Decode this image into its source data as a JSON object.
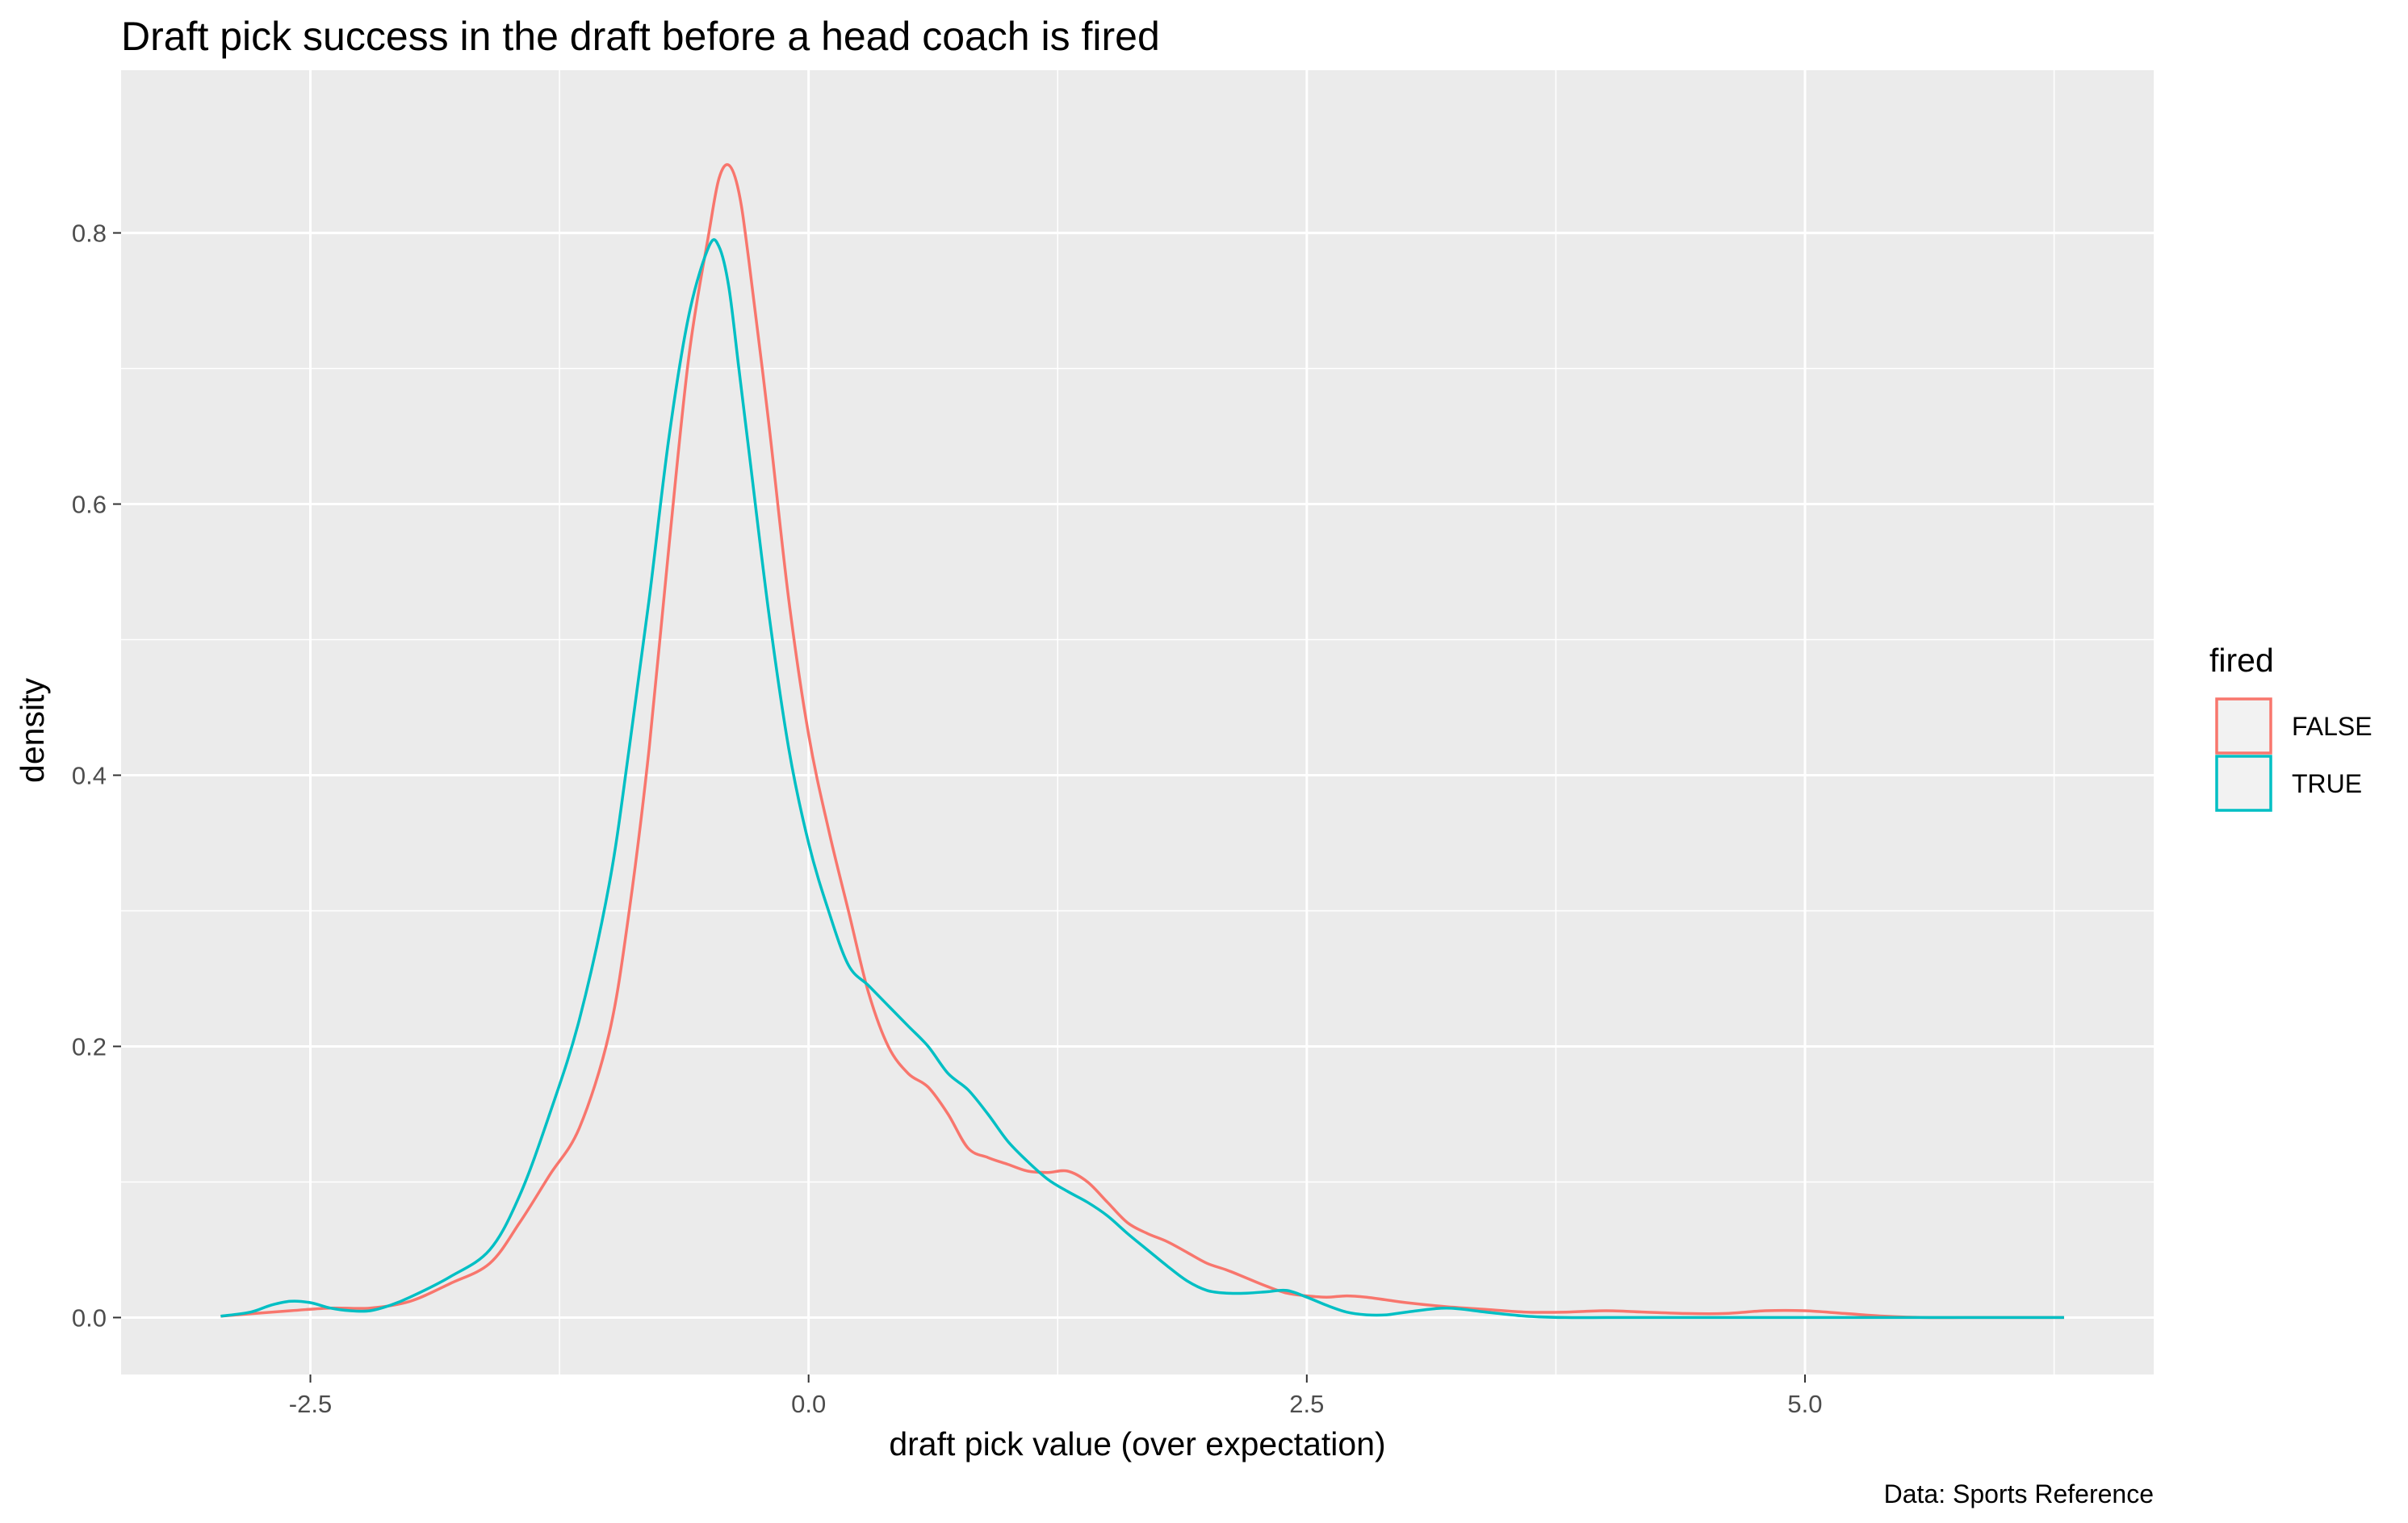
{
  "chart_data": {
    "type": "line",
    "title": "Draft pick success in the draft before a head coach is fired",
    "xlabel": "draft pick value (over expectation)",
    "ylabel": "density",
    "caption": "Data: Sports Reference",
    "xlim": [
      -3.45,
      6.75
    ],
    "ylim": [
      -0.042,
      0.92
    ],
    "x_ticks": [
      -2.5,
      0.0,
      2.5,
      5.0
    ],
    "x_tick_labels": [
      "-2.5",
      "0.0",
      "2.5",
      "5.0"
    ],
    "y_ticks": [
      0.0,
      0.2,
      0.4,
      0.6,
      0.8
    ],
    "y_tick_labels": [
      "0.0",
      "0.2",
      "0.4",
      "0.6",
      "0.8"
    ],
    "grid": true,
    "legend": {
      "title": "fired",
      "position": "right"
    },
    "series": [
      {
        "name": "FALSE",
        "color": "#F8766D",
        "x": [
          -2.95,
          -2.6,
          -2.4,
          -2.2,
          -2.0,
          -1.8,
          -1.6,
          -1.45,
          -1.3,
          -1.15,
          -1.0,
          -0.9,
          -0.8,
          -0.7,
          -0.6,
          -0.5,
          -0.45,
          -0.4,
          -0.35,
          -0.3,
          -0.2,
          -0.1,
          0.0,
          0.1,
          0.2,
          0.3,
          0.4,
          0.5,
          0.6,
          0.7,
          0.8,
          0.9,
          1.0,
          1.1,
          1.2,
          1.3,
          1.4,
          1.5,
          1.6,
          1.7,
          1.8,
          1.9,
          2.0,
          2.1,
          2.2,
          2.3,
          2.4,
          2.5,
          2.6,
          2.7,
          2.8,
          2.9,
          3.0,
          3.2,
          3.4,
          3.6,
          3.8,
          4.0,
          4.2,
          4.4,
          4.6,
          4.8,
          5.0,
          5.2,
          5.4,
          5.6,
          5.8,
          6.0,
          6.2,
          6.3
        ],
        "values": [
          0.001,
          0.005,
          0.007,
          0.007,
          0.012,
          0.025,
          0.04,
          0.07,
          0.105,
          0.14,
          0.21,
          0.3,
          0.42,
          0.57,
          0.71,
          0.8,
          0.84,
          0.85,
          0.83,
          0.78,
          0.66,
          0.53,
          0.43,
          0.36,
          0.3,
          0.24,
          0.2,
          0.18,
          0.17,
          0.15,
          0.125,
          0.118,
          0.113,
          0.108,
          0.107,
          0.108,
          0.1,
          0.085,
          0.07,
          0.062,
          0.056,
          0.048,
          0.04,
          0.035,
          0.029,
          0.023,
          0.018,
          0.016,
          0.015,
          0.016,
          0.015,
          0.013,
          0.011,
          0.008,
          0.006,
          0.004,
          0.004,
          0.005,
          0.004,
          0.003,
          0.003,
          0.005,
          0.005,
          0.003,
          0.001,
          0.0,
          0.0,
          0.0,
          0.0,
          0.0
        ]
      },
      {
        "name": "TRUE",
        "color": "#00BFC4",
        "x": [
          -2.95,
          -2.8,
          -2.7,
          -2.6,
          -2.5,
          -2.4,
          -2.3,
          -2.2,
          -2.1,
          -2.0,
          -1.8,
          -1.6,
          -1.45,
          -1.3,
          -1.15,
          -1.0,
          -0.9,
          -0.8,
          -0.7,
          -0.6,
          -0.5,
          -0.45,
          -0.4,
          -0.35,
          -0.3,
          -0.2,
          -0.1,
          0.0,
          0.1,
          0.2,
          0.3,
          0.4,
          0.5,
          0.6,
          0.7,
          0.8,
          0.9,
          1.0,
          1.1,
          1.2,
          1.3,
          1.4,
          1.5,
          1.6,
          1.7,
          1.8,
          1.9,
          2.0,
          2.1,
          2.2,
          2.3,
          2.4,
          2.5,
          2.6,
          2.7,
          2.8,
          2.9,
          3.0,
          3.2,
          3.4,
          3.6,
          3.8,
          4.0,
          4.2,
          4.4,
          4.6,
          4.8,
          5.0,
          5.2,
          5.4,
          5.6,
          5.8,
          6.0,
          6.2,
          6.3
        ],
        "values": [
          0.001,
          0.004,
          0.009,
          0.012,
          0.011,
          0.007,
          0.005,
          0.005,
          0.009,
          0.015,
          0.03,
          0.05,
          0.09,
          0.15,
          0.22,
          0.32,
          0.42,
          0.53,
          0.65,
          0.74,
          0.79,
          0.79,
          0.76,
          0.7,
          0.64,
          0.52,
          0.42,
          0.35,
          0.3,
          0.26,
          0.245,
          0.23,
          0.215,
          0.2,
          0.18,
          0.168,
          0.15,
          0.13,
          0.115,
          0.102,
          0.093,
          0.085,
          0.075,
          0.062,
          0.05,
          0.038,
          0.027,
          0.02,
          0.018,
          0.018,
          0.019,
          0.02,
          0.015,
          0.009,
          0.004,
          0.002,
          0.002,
          0.004,
          0.007,
          0.004,
          0.001,
          0.0,
          0.0,
          0.0,
          0.0,
          0.0,
          0.0,
          0.0,
          0.0,
          0.0,
          0.0,
          0.0,
          0.0,
          0.0,
          0.0
        ]
      }
    ]
  }
}
